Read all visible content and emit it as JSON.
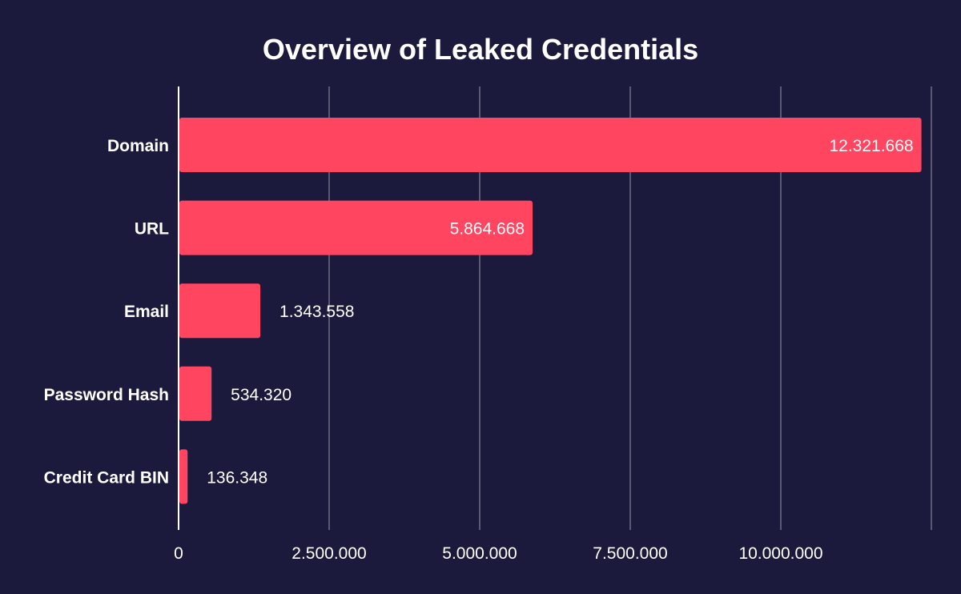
{
  "chart_data": {
    "type": "bar",
    "orientation": "horizontal",
    "title": "Overview of Leaked Credentials",
    "categories": [
      "Domain",
      "URL",
      "Email",
      "Password Hash",
      "Credit Card BIN"
    ],
    "values": [
      12321668,
      5864668,
      1343558,
      534320,
      136348
    ],
    "value_labels": [
      "12.321.668",
      "5.864.668",
      "1.343.558",
      "534.320",
      "136.348"
    ],
    "xlim": [
      0,
      12500000
    ],
    "xticks": [
      0,
      2500000,
      5000000,
      7500000,
      10000000,
      12500000
    ],
    "xtick_labels": [
      "0",
      "2.500.000",
      "5.000.000",
      "7.500.000",
      "10.000.000",
      ""
    ],
    "grid": "vertical",
    "xlabel": "",
    "ylabel": "",
    "colors": {
      "background": "#1c1a3c",
      "bar": "#ff4560",
      "grid": "#6e6d84",
      "axis": "#ffffff",
      "text": "#ffffff"
    }
  }
}
